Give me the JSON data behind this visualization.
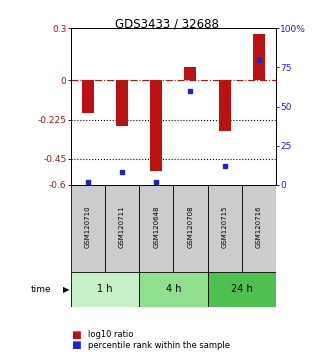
{
  "title": "GDS3433 / 32688",
  "samples": [
    "GSM120710",
    "GSM120711",
    "GSM120648",
    "GSM120708",
    "GSM120715",
    "GSM120716"
  ],
  "log10_ratio": [
    -0.19,
    -0.265,
    -0.52,
    0.08,
    -0.29,
    0.27
  ],
  "percentile_rank": [
    2,
    8,
    2,
    60,
    12,
    80
  ],
  "groups": [
    {
      "label": "1 h",
      "indices": [
        0,
        1
      ],
      "color": "#c8f0c8"
    },
    {
      "label": "4 h",
      "indices": [
        2,
        3
      ],
      "color": "#90e090"
    },
    {
      "label": "24 h",
      "indices": [
        4,
        5
      ],
      "color": "#50c050"
    }
  ],
  "bar_color": "#bb1111",
  "dot_color": "#2222cc",
  "ylim_left": [
    -0.6,
    0.3
  ],
  "ylim_right": [
    0,
    100
  ],
  "yticks_left": [
    0.3,
    0,
    -0.225,
    -0.45,
    -0.6
  ],
  "yticks_right": [
    100,
    75,
    50,
    25,
    0
  ],
  "ytick_labels_left": [
    "0.3",
    "0",
    "-0.225",
    "-0.45",
    "-0.6"
  ],
  "ytick_labels_right": [
    "100%",
    "75",
    "50",
    "25",
    "0"
  ],
  "hlines_dotted": [
    -0.225,
    -0.45
  ],
  "hline_dashed": 0,
  "bar_width": 0.35,
  "legend_red": "log10 ratio",
  "legend_blue": "percentile rank within the sample",
  "sample_box_color": "#cccccc",
  "figsize": [
    3.21,
    3.54
  ],
  "dpi": 100
}
